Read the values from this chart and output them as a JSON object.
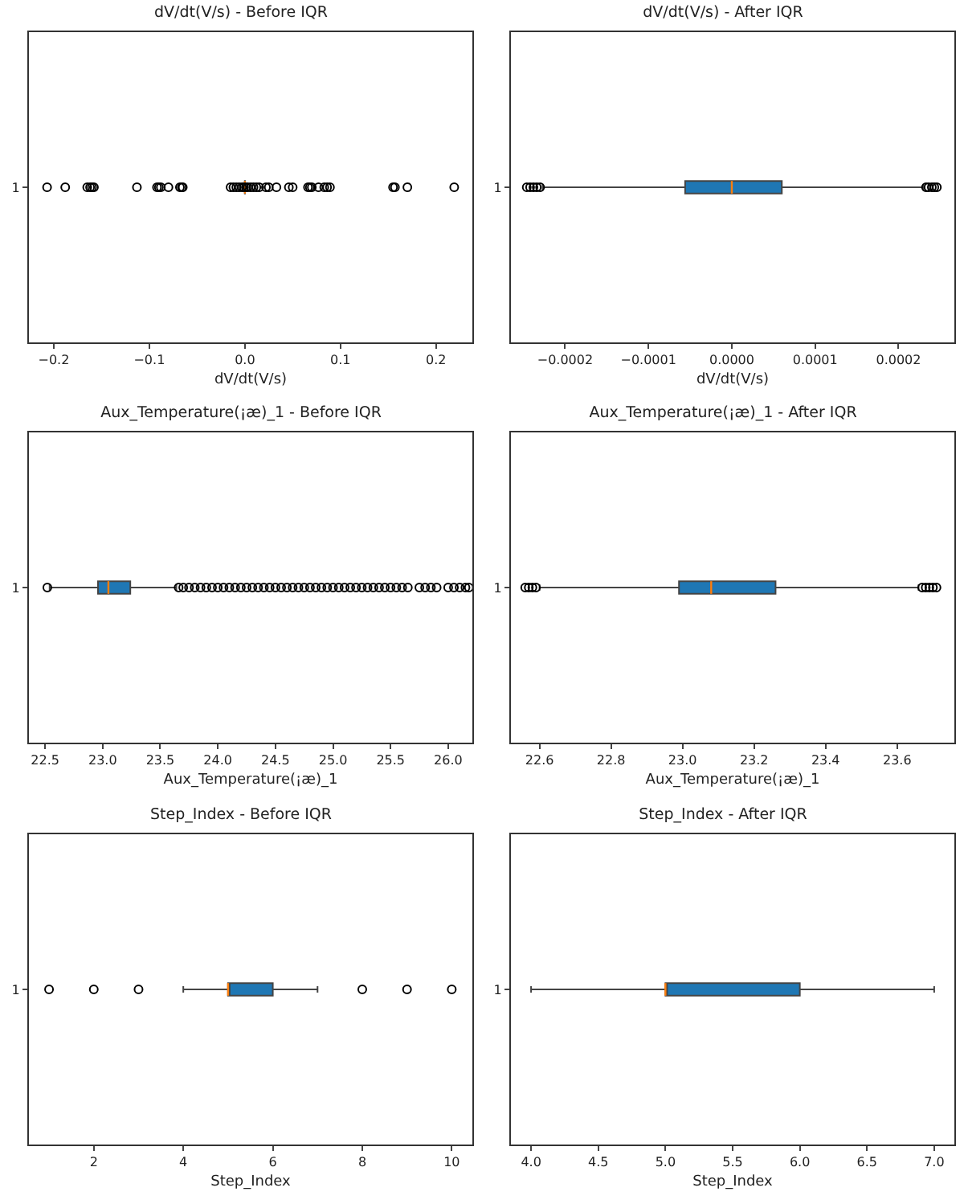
{
  "chart_data": [
    {
      "type": "box",
      "title": "dV/dt(V/s) - Before IQR",
      "xlabel": "dV/dt(V/s)",
      "categories": [
        "1"
      ],
      "orientation": "horizontal",
      "color": "#1f77b4",
      "grid": false,
      "marker": "circle",
      "xlim": [
        -0.226,
        0.238
      ],
      "xticks": [
        {
          "value": -0.2,
          "label": "−0.2"
        },
        {
          "value": -0.1,
          "label": "−0.1"
        },
        {
          "value": 0,
          "label": "0.0"
        },
        0.1,
        0.2
      ],
      "boxes": [
        {
          "low": -0.0002,
          "q1": -6e-05,
          "median": 0,
          "q3": 6e-05,
          "high": 0.0002,
          "outliers": [
            -0.207,
            -0.188,
            -0.165,
            -0.162,
            -0.16,
            -0.158,
            -0.113,
            -0.092,
            -0.09,
            -0.088,
            -0.08,
            -0.068,
            -0.066,
            -0.065,
            -0.015,
            -0.012,
            -0.009,
            -0.006,
            -0.003,
            -0.001,
            0.001,
            0.003,
            0.006,
            0.009,
            0.012,
            0.015,
            0.022,
            0.025,
            0.033,
            0.046,
            0.05,
            0.066,
            0.068,
            0.07,
            0.077,
            0.083,
            0.086,
            0.089,
            0.155,
            0.157,
            0.17,
            0.219
          ]
        }
      ]
    },
    {
      "type": "box",
      "title": "dV/dt(V/s) - After IQR",
      "xlabel": "dV/dt(V/s)",
      "categories": [
        "1"
      ],
      "orientation": "horizontal",
      "color": "#1f77b4",
      "grid": false,
      "marker": "circle",
      "xlim": [
        -0.000265,
        0.000267
      ],
      "xticks": [
        {
          "value": -0.0002,
          "label": "−0.0002"
        },
        {
          "value": -0.0001,
          "label": "−0.0001"
        },
        {
          "value": 0,
          "label": "0.0000"
        },
        0.0001,
        0.0002
      ],
      "boxes": [
        {
          "low": -0.000227,
          "q1": -5.6e-05,
          "median": 0,
          "q3": 6e-05,
          "high": 0.00023,
          "outliers": [
            -0.000246,
            -0.000242,
            -0.000238,
            -0.000234,
            -0.00023,
            0.000233,
            0.000236,
            0.00024,
            0.000243,
            0.000246
          ]
        }
      ]
    },
    {
      "type": "box",
      "title": "Aux_Temperature(¡æ)_1 - Before IQR",
      "xlabel": "Aux_Temperature(¡æ)_1",
      "categories": [
        "1"
      ],
      "orientation": "horizontal",
      "color": "#1f77b4",
      "grid": false,
      "marker": "circle",
      "xlim": [
        22.36,
        26.21
      ],
      "xticks": [
        22.5,
        {
          "value": 23,
          "label": "23.0"
        },
        23.5,
        {
          "value": 24,
          "label": "24.0"
        },
        24.5,
        {
          "value": 25,
          "label": "25.0"
        },
        25.5,
        {
          "value": 26,
          "label": "26.0"
        }
      ],
      "boxes": [
        {
          "low": 22.54,
          "q1": 22.96,
          "median": 23.05,
          "q3": 23.24,
          "high": 23.64,
          "outliers": [
            22.52,
            23.66,
            23.7,
            23.75,
            23.8,
            23.85,
            23.9,
            23.95,
            24.0,
            24.05,
            24.1,
            24.15,
            24.2,
            24.25,
            24.3,
            24.35,
            24.4,
            24.45,
            24.5,
            24.55,
            24.6,
            24.65,
            24.7,
            24.75,
            24.8,
            24.85,
            24.9,
            24.95,
            25.0,
            25.05,
            25.1,
            25.15,
            25.2,
            25.25,
            25.3,
            25.35,
            25.4,
            25.45,
            25.5,
            25.55,
            25.6,
            25.65,
            25.75,
            25.8,
            25.85,
            25.9,
            26.0,
            26.05,
            26.1,
            26.15,
            26.18
          ]
        }
      ]
    },
    {
      "type": "box",
      "title": "Aux_Temperature(¡æ)_1 - After IQR",
      "xlabel": "Aux_Temperature(¡æ)_1",
      "categories": [
        "1"
      ],
      "orientation": "horizontal",
      "color": "#1f77b4",
      "grid": false,
      "marker": "circle",
      "xlim": [
        22.52,
        23.76
      ],
      "xticks": [
        22.6,
        22.8,
        {
          "value": 23,
          "label": "23.0"
        },
        23.2,
        23.4,
        23.6
      ],
      "boxes": [
        {
          "low": 22.6,
          "q1": 22.99,
          "median": 23.08,
          "q3": 23.26,
          "high": 23.66,
          "outliers": [
            22.56,
            22.57,
            22.58,
            22.59,
            23.67,
            23.68,
            23.69,
            23.7,
            23.71
          ]
        }
      ]
    },
    {
      "type": "box",
      "title": "Step_Index - Before IQR",
      "xlabel": "Step_Index",
      "categories": [
        "1"
      ],
      "orientation": "horizontal",
      "color": "#1f77b4",
      "grid": false,
      "marker": "circle",
      "xlim": [
        0.55,
        10.46
      ],
      "xticks": [
        2,
        4,
        6,
        8,
        10
      ],
      "boxes": [
        {
          "low": 4,
          "q1": 5,
          "median": 5,
          "q3": 6,
          "high": 7,
          "outliers": [
            1,
            2,
            3,
            8,
            9,
            10
          ]
        }
      ]
    },
    {
      "type": "box",
      "title": "Step_Index - After IQR",
      "xlabel": "Step_Index",
      "categories": [
        "1"
      ],
      "orientation": "horizontal",
      "color": "#1f77b4",
      "grid": false,
      "marker": "circle",
      "xlim": [
        3.85,
        7.15
      ],
      "xticks": [
        {
          "value": 4,
          "label": "4.0"
        },
        4.5,
        {
          "value": 5,
          "label": "5.0"
        },
        5.5,
        {
          "value": 6,
          "label": "6.0"
        },
        6.5,
        {
          "value": 7,
          "label": "7.0"
        }
      ],
      "boxes": [
        {
          "low": 4,
          "q1": 5,
          "median": 5,
          "q3": 6,
          "high": 7
        }
      ]
    }
  ]
}
